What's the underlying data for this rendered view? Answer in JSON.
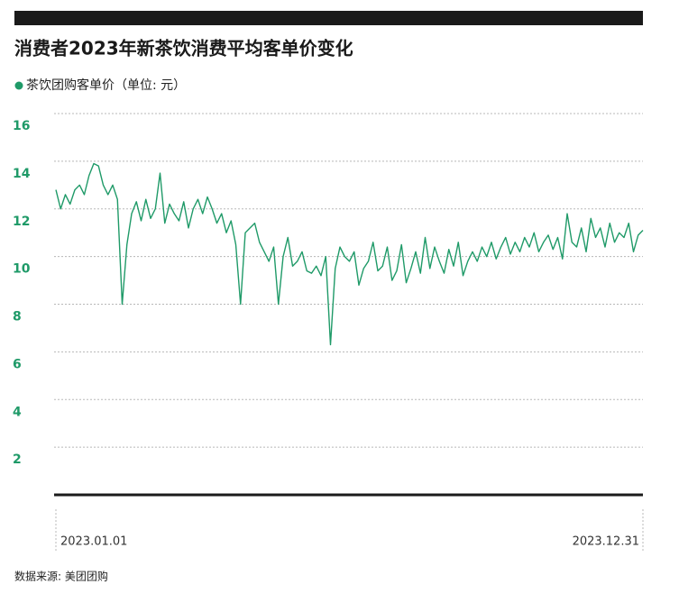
{
  "chart_data": {
    "type": "line",
    "title": "消费者2023年新茶饮消费平均客单价变化",
    "source": "数据来源: 美团团购",
    "categories": [
      "2023.01.01",
      null,
      null,
      null,
      null,
      null,
      null,
      null,
      null,
      null,
      null,
      null,
      null,
      null,
      null,
      null,
      null,
      null,
      null,
      null,
      null,
      null,
      null,
      null,
      null,
      null,
      null,
      null,
      null,
      null,
      null,
      null,
      null,
      null,
      null,
      null,
      null,
      null,
      null,
      null,
      null,
      null,
      null,
      null,
      null,
      null,
      null,
      null,
      null,
      null,
      null,
      null,
      null,
      null,
      null,
      null,
      null,
      null,
      null,
      null,
      null,
      null,
      null,
      null,
      null,
      null,
      null,
      null,
      null,
      null,
      null,
      null,
      null,
      null,
      null,
      null,
      null,
      null,
      null,
      null,
      null,
      null,
      null,
      null,
      null,
      null,
      null,
      null,
      null,
      null,
      null,
      null,
      null,
      null,
      null,
      null,
      null,
      null,
      null,
      null,
      null,
      null,
      null,
      null,
      null,
      null,
      null,
      null,
      null,
      null,
      null,
      null,
      null,
      null,
      null,
      null,
      null,
      null,
      null,
      null,
      null,
      null,
      null,
      null,
      "2023.12.31"
    ],
    "series": [
      {
        "name": "茶饮团购客单价（单位: 元）",
        "color": "#1f9a68",
        "values": [
          12.8,
          12.0,
          12.6,
          12.2,
          12.8,
          13.0,
          12.6,
          13.4,
          13.9,
          13.8,
          13.0,
          12.6,
          13.0,
          12.4,
          8.0,
          10.5,
          11.8,
          12.3,
          11.5,
          12.4,
          11.6,
          12.0,
          13.5,
          11.4,
          12.2,
          11.8,
          11.5,
          12.3,
          11.2,
          12.0,
          12.4,
          11.8,
          12.5,
          12.0,
          11.4,
          11.8,
          11.0,
          11.5,
          10.5,
          8.0,
          11.0,
          11.2,
          11.4,
          10.6,
          10.2,
          9.8,
          10.4,
          8.0,
          10.0,
          10.8,
          9.6,
          9.8,
          10.2,
          9.4,
          9.3,
          9.6,
          9.2,
          10.0,
          6.3,
          9.5,
          10.4,
          10.0,
          9.8,
          10.2,
          8.8,
          9.5,
          9.8,
          10.6,
          9.4,
          9.6,
          10.4,
          9.0,
          9.4,
          10.5,
          8.9,
          9.5,
          10.2,
          9.3,
          10.8,
          9.5,
          10.4,
          9.8,
          9.3,
          10.3,
          9.6,
          10.6,
          9.2,
          9.8,
          10.2,
          9.8,
          10.4,
          10.0,
          10.6,
          9.9,
          10.4,
          10.8,
          10.1,
          10.6,
          10.2,
          10.8,
          10.4,
          11.0,
          10.2,
          10.6,
          10.9,
          10.3,
          10.8,
          9.9,
          11.8,
          10.6,
          10.4,
          11.2,
          10.2,
          11.6,
          10.8,
          11.2,
          10.4,
          11.4,
          10.6,
          11.0,
          10.8,
          11.4,
          10.2,
          10.9,
          11.1
        ]
      }
    ],
    "ylim": [
      0,
      16
    ],
    "yticks": [
      2,
      4,
      6,
      8,
      10,
      12,
      14,
      16
    ],
    "grid": true
  }
}
